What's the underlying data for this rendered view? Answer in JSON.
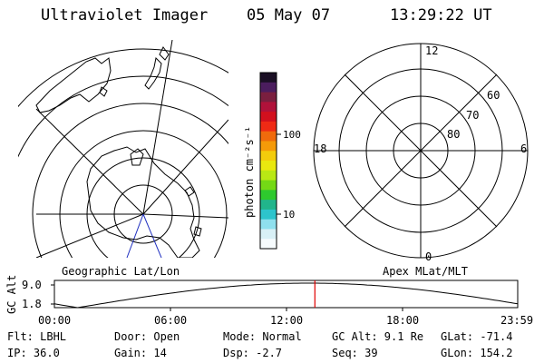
{
  "header": {
    "instrument": "Ultraviolet Imager",
    "date": "05 May 07",
    "time": "13:29:22 UT"
  },
  "colorbar": {
    "unit": "photon cm⁻²s⁻¹",
    "ticks": [
      "100",
      "10"
    ],
    "colors": [
      "#1a0f24",
      "#4b1d5e",
      "#7a1f3f",
      "#b0123a",
      "#d2101e",
      "#ef2a15",
      "#f06a0c",
      "#f59a09",
      "#f3cc0c",
      "#e9e80f",
      "#b9e814",
      "#74d915",
      "#2ec92e",
      "#21b58b",
      "#2dc4cc",
      "#8fe0ee",
      "#d8f0f6",
      "#f6fbfd"
    ]
  },
  "map_left": {
    "caption": "Geographic Lat/Lon"
  },
  "map_right": {
    "caption": "Apex MLat/MLT",
    "mlt_labels": [
      "12",
      "18",
      "6",
      "0"
    ],
    "mlat_labels": [
      "60",
      "70",
      "80"
    ]
  },
  "track": {
    "ylabel": "GC Alt",
    "ticks": [
      "9.0",
      "1.8"
    ],
    "xticks": [
      "00:00",
      "06:00",
      "12:00",
      "18:00",
      "23:59"
    ],
    "current_time_frac": 0.5622,
    "line_color": "#e00000"
  },
  "info": {
    "row1": {
      "flt": "Flt: LBHL",
      "door": "Door: Open",
      "mode": "Mode: Normal",
      "gcalt": "GC Alt: 9.1 Re",
      "glat": "GLat: -71.4"
    },
    "row2": {
      "ip": "IP: 36.0",
      "gain": "Gain: 14",
      "dsp": "Dsp:   -2.7",
      "seq": "Seq: 39",
      "glon": "GLon: 154.2"
    }
  }
}
